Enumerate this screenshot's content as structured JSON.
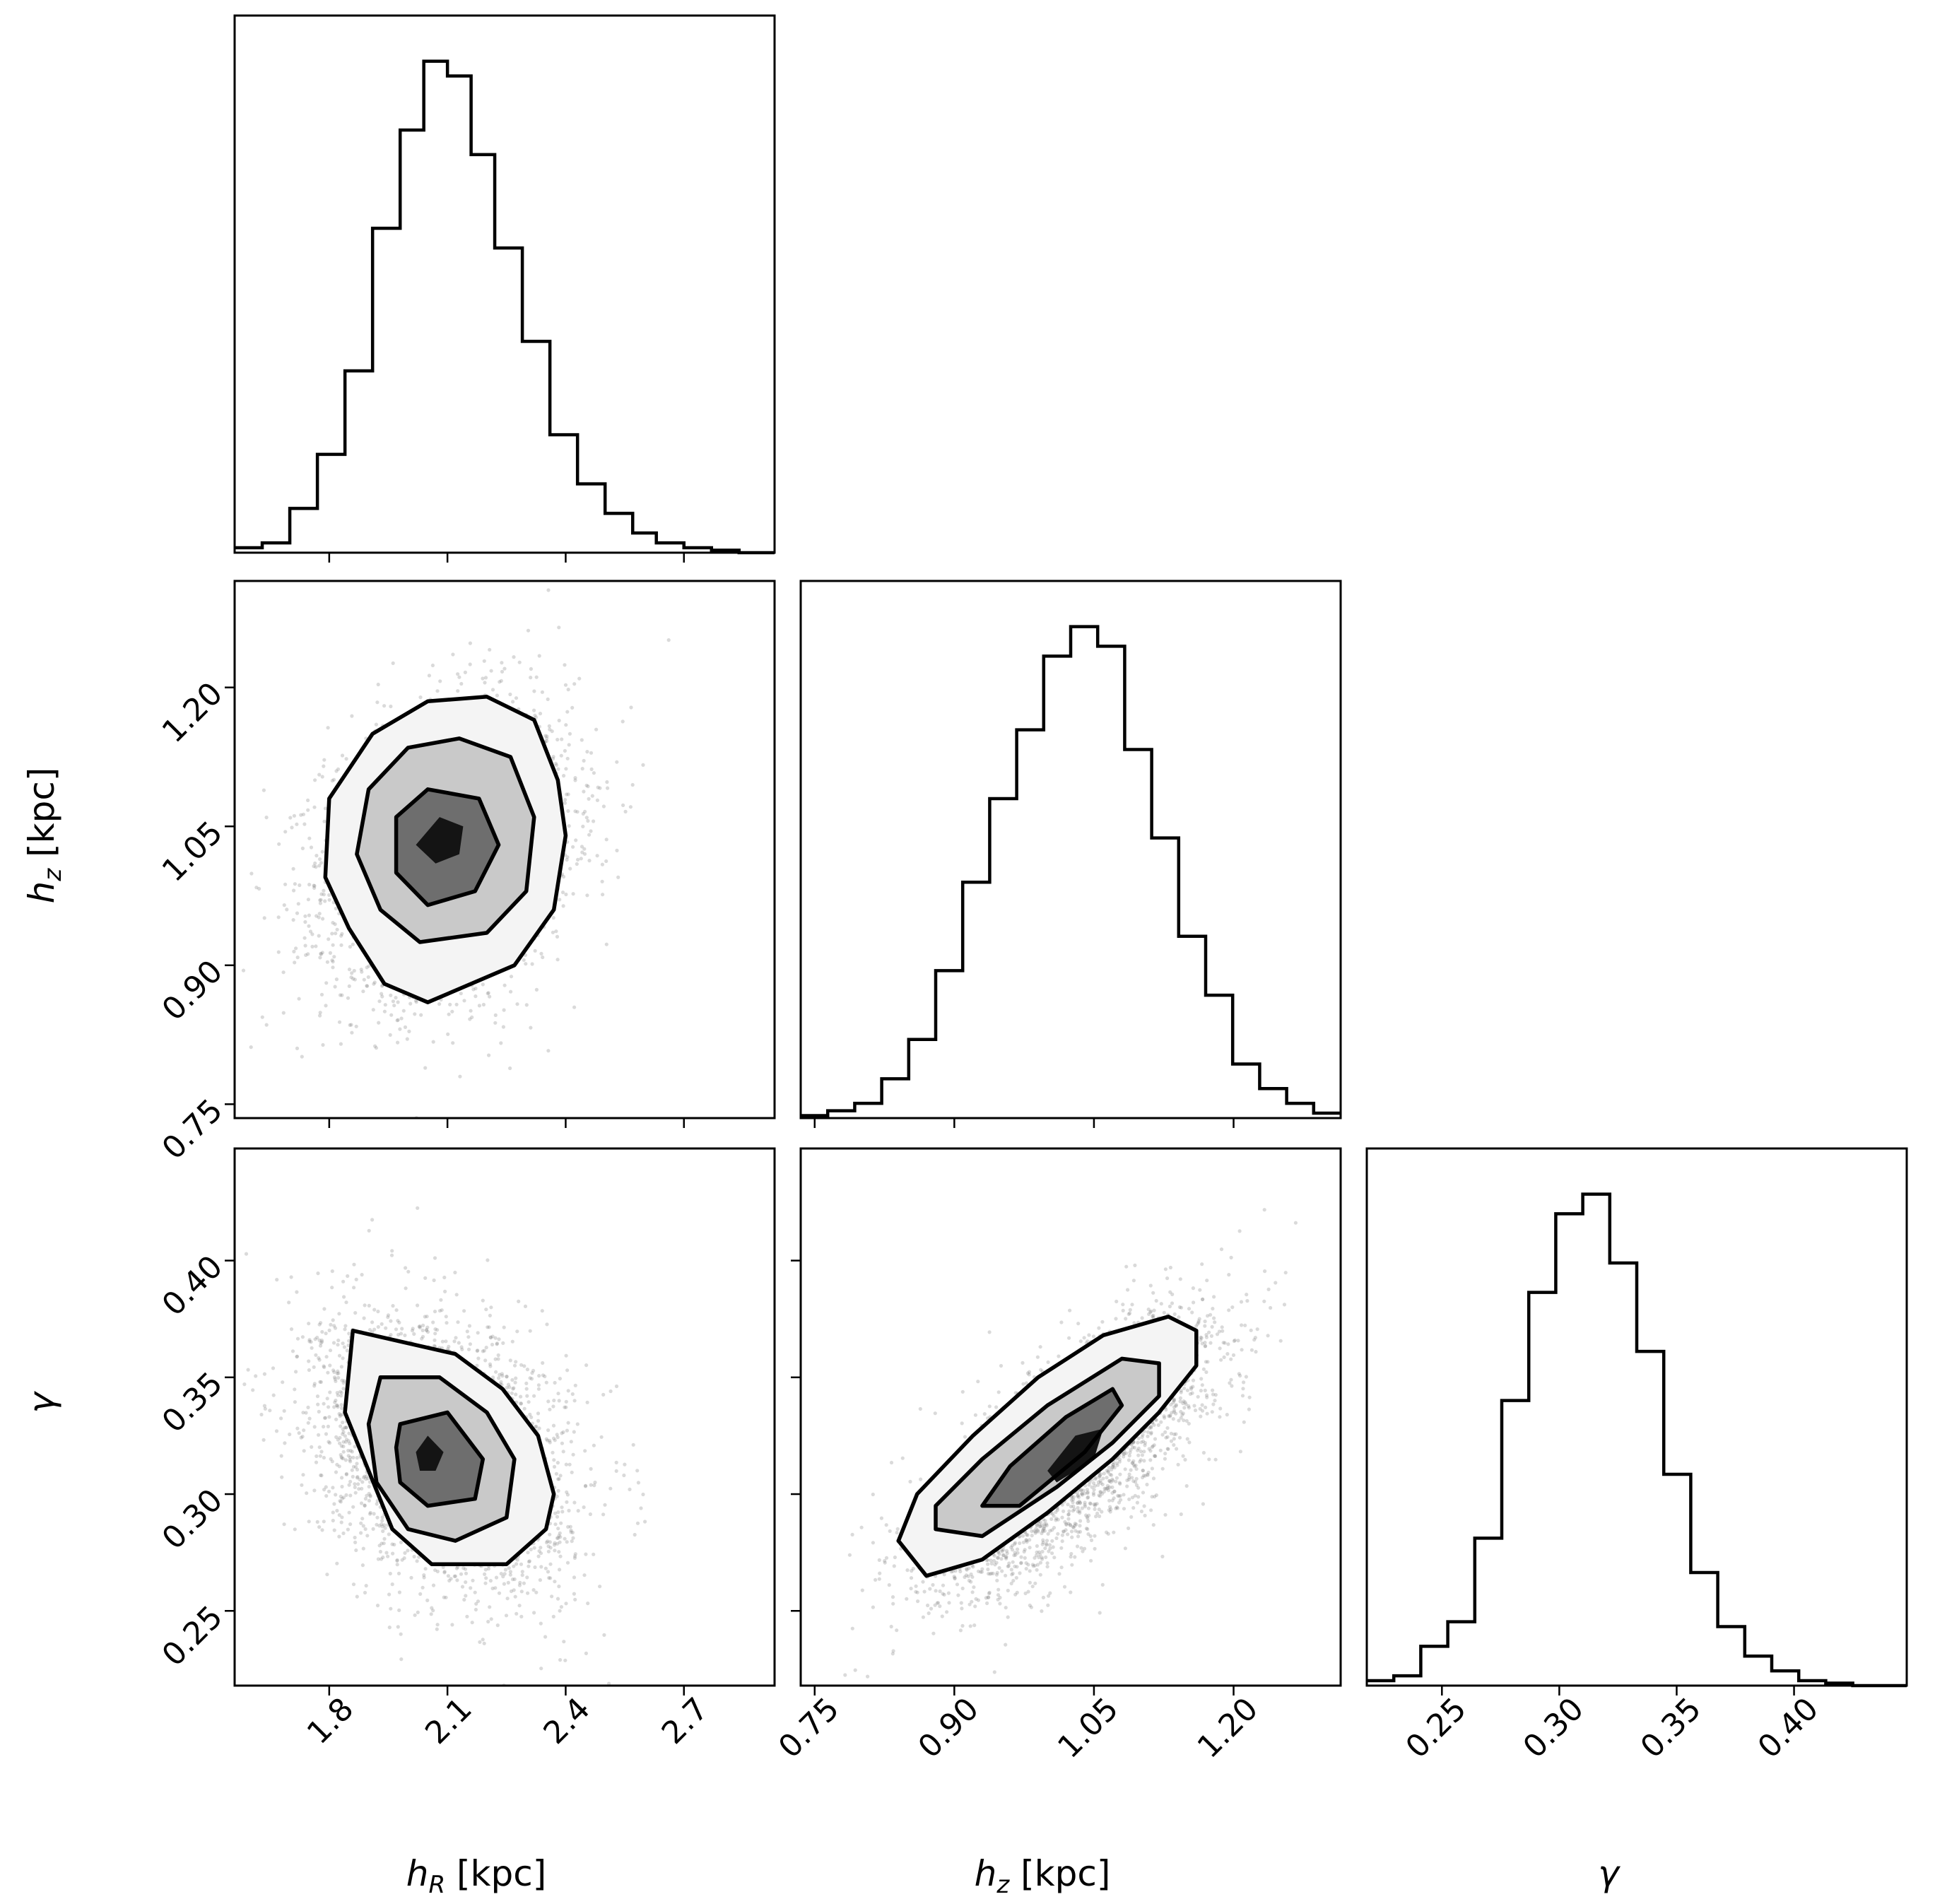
{
  "chart_data": {
    "type": "corner",
    "title": "",
    "parameters": [
      {
        "key": "hR",
        "label": "h",
        "label_sub": "R",
        "label_unit": " [kpc]",
        "range": [
          1.56,
          2.93
        ],
        "ticks": [
          1.8,
          2.1,
          2.4,
          2.7
        ],
        "tick_labels": [
          "1.8",
          "2.1",
          "2.4",
          "2.7"
        ]
      },
      {
        "key": "hz",
        "label": "h",
        "label_sub": "z",
        "label_unit": " [kpc]",
        "range": [
          0.735,
          1.315
        ],
        "ticks": [
          0.75,
          0.9,
          1.05,
          1.2
        ],
        "tick_labels": [
          "0.75",
          "0.90",
          "1.05",
          "1.20"
        ]
      },
      {
        "key": "gamma",
        "label": "γ",
        "label_sub": "",
        "label_unit": "",
        "range": [
          0.218,
          0.448
        ],
        "ticks": [
          0.25,
          0.3,
          0.35,
          0.4
        ],
        "tick_labels": [
          "0.25",
          "0.30",
          "0.35",
          "0.40"
        ]
      }
    ],
    "histograms": [
      {
        "param": "hR",
        "bin_edges": [
          1.56,
          1.63,
          1.7,
          1.77,
          1.84,
          1.91,
          1.98,
          2.04,
          2.1,
          2.16,
          2.22,
          2.29,
          2.36,
          2.43,
          2.5,
          2.57,
          2.63,
          2.7,
          2.77,
          2.84,
          2.93
        ],
        "counts": [
          0.01,
          0.02,
          0.09,
          0.2,
          0.37,
          0.66,
          0.86,
          1.0,
          0.97,
          0.81,
          0.62,
          0.43,
          0.24,
          0.14,
          0.08,
          0.04,
          0.02,
          0.01,
          0.005,
          0
        ]
      },
      {
        "param": "hz",
        "bin_edges": [
          0.735,
          0.764,
          0.793,
          0.822,
          0.851,
          0.88,
          0.909,
          0.938,
          0.967,
          0.996,
          1.025,
          1.054,
          1.083,
          1.112,
          1.141,
          1.17,
          1.199,
          1.228,
          1.257,
          1.286,
          1.315
        ],
        "counts": [
          0.005,
          0.015,
          0.03,
          0.08,
          0.16,
          0.3,
          0.48,
          0.65,
          0.79,
          0.94,
          1.0,
          0.96,
          0.75,
          0.57,
          0.37,
          0.25,
          0.11,
          0.06,
          0.03,
          0.01
        ]
      },
      {
        "param": "gamma",
        "bin_edges": [
          0.218,
          0.2295,
          0.241,
          0.2525,
          0.264,
          0.2755,
          0.287,
          0.2985,
          0.31,
          0.3215,
          0.333,
          0.3445,
          0.356,
          0.3675,
          0.379,
          0.3905,
          0.402,
          0.4135,
          0.425,
          0.4365,
          0.448
        ],
        "counts": [
          0.01,
          0.02,
          0.08,
          0.13,
          0.3,
          0.58,
          0.8,
          0.96,
          1.0,
          0.86,
          0.68,
          0.43,
          0.23,
          0.12,
          0.06,
          0.03,
          0.01,
          0.005,
          0,
          0
        ]
      }
    ],
    "pairs": [
      {
        "x": "hR",
        "y": "hz",
        "mean": [
          2.1,
          1.025
        ],
        "std": [
          0.155,
          0.075
        ],
        "correlation": 0.25,
        "points": 3500,
        "contours": [
          [
            [
              1.85,
              0.94
            ],
            [
              1.79,
              0.995
            ],
            [
              1.8,
              1.08
            ],
            [
              1.91,
              1.15
            ],
            [
              2.05,
              1.185
            ],
            [
              2.2,
              1.19
            ],
            [
              2.32,
              1.165
            ],
            [
              2.38,
              1.1
            ],
            [
              2.4,
              1.04
            ],
            [
              2.37,
              0.96
            ],
            [
              2.27,
              0.9
            ],
            [
              2.05,
              0.86
            ],
            [
              1.94,
              0.88
            ],
            [
              1.85,
              0.94
            ]
          ],
          [
            [
              1.93,
              0.96
            ],
            [
              1.87,
              1.02
            ],
            [
              1.9,
              1.09
            ],
            [
              2.0,
              1.135
            ],
            [
              2.13,
              1.145
            ],
            [
              2.26,
              1.125
            ],
            [
              2.32,
              1.06
            ],
            [
              2.3,
              0.98
            ],
            [
              2.2,
              0.935
            ],
            [
              2.03,
              0.925
            ],
            [
              1.93,
              0.96
            ]
          ],
          [
            [
              1.97,
              1.0
            ],
            [
              1.97,
              1.06
            ],
            [
              2.05,
              1.09
            ],
            [
              2.18,
              1.08
            ],
            [
              2.23,
              1.03
            ],
            [
              2.17,
              0.98
            ],
            [
              2.05,
              0.965
            ],
            [
              1.97,
              1.0
            ]
          ],
          [
            [
              2.02,
              1.03
            ],
            [
              2.08,
              1.06
            ],
            [
              2.14,
              1.05
            ],
            [
              2.13,
              1.02
            ],
            [
              2.07,
              1.01
            ],
            [
              2.02,
              1.03
            ]
          ]
        ]
      },
      {
        "x": "hR",
        "y": "gamma",
        "mean": [
          2.09,
          0.318
        ],
        "std": [
          0.155,
          0.028
        ],
        "correlation": -0.3,
        "points": 3500,
        "contours": [
          [
            [
              1.86,
              0.37
            ],
            [
              1.99,
              0.365
            ],
            [
              2.12,
              0.36
            ],
            [
              2.24,
              0.345
            ],
            [
              2.33,
              0.325
            ],
            [
              2.37,
              0.3
            ],
            [
              2.35,
              0.285
            ],
            [
              2.25,
              0.27
            ],
            [
              2.06,
              0.27
            ],
            [
              1.96,
              0.285
            ],
            [
              1.9,
              0.31
            ],
            [
              1.84,
              0.335
            ],
            [
              1.86,
              0.37
            ]
          ],
          [
            [
              1.93,
              0.35
            ],
            [
              2.08,
              0.35
            ],
            [
              2.2,
              0.335
            ],
            [
              2.27,
              0.315
            ],
            [
              2.25,
              0.29
            ],
            [
              2.12,
              0.28
            ],
            [
              2.0,
              0.285
            ],
            [
              1.92,
              0.305
            ],
            [
              1.9,
              0.33
            ],
            [
              1.93,
              0.35
            ]
          ],
          [
            [
              1.98,
              0.33
            ],
            [
              2.1,
              0.335
            ],
            [
              2.19,
              0.315
            ],
            [
              2.17,
              0.298
            ],
            [
              2.05,
              0.295
            ],
            [
              1.98,
              0.305
            ],
            [
              1.97,
              0.32
            ],
            [
              1.98,
              0.33
            ]
          ],
          [
            [
              2.02,
              0.318
            ],
            [
              2.05,
              0.325
            ],
            [
              2.09,
              0.318
            ],
            [
              2.07,
              0.31
            ],
            [
              2.03,
              0.31
            ],
            [
              2.02,
              0.318
            ]
          ]
        ]
      },
      {
        "x": "hz",
        "y": "gamma",
        "mean": [
          1.025,
          0.318
        ],
        "std": [
          0.075,
          0.028
        ],
        "correlation": 0.72,
        "points": 3500,
        "contours": [
          [
            [
              0.84,
              0.28
            ],
            [
              0.87,
              0.265
            ],
            [
              0.93,
              0.272
            ],
            [
              1.0,
              0.292
            ],
            [
              1.07,
              0.315
            ],
            [
              1.12,
              0.335
            ],
            [
              1.16,
              0.355
            ],
            [
              1.16,
              0.37
            ],
            [
              1.13,
              0.376
            ],
            [
              1.06,
              0.368
            ],
            [
              0.99,
              0.35
            ],
            [
              0.92,
              0.325
            ],
            [
              0.86,
              0.3
            ],
            [
              0.84,
              0.28
            ]
          ],
          [
            [
              0.88,
              0.285
            ],
            [
              0.93,
              0.282
            ],
            [
              1.01,
              0.303
            ],
            [
              1.07,
              0.322
            ],
            [
              1.12,
              0.342
            ],
            [
              1.12,
              0.356
            ],
            [
              1.08,
              0.358
            ],
            [
              1.0,
              0.338
            ],
            [
              0.93,
              0.315
            ],
            [
              0.88,
              0.295
            ],
            [
              0.88,
              0.285
            ]
          ],
          [
            [
              0.93,
              0.295
            ],
            [
              0.97,
              0.295
            ],
            [
              1.04,
              0.318
            ],
            [
              1.08,
              0.338
            ],
            [
              1.07,
              0.345
            ],
            [
              1.02,
              0.333
            ],
            [
              0.96,
              0.312
            ],
            [
              0.93,
              0.295
            ]
          ],
          [
            [
              1.0,
              0.31
            ],
            [
              1.03,
              0.325
            ],
            [
              1.06,
              0.328
            ],
            [
              1.05,
              0.315
            ],
            [
              1.01,
              0.305
            ],
            [
              1.0,
              0.31
            ]
          ]
        ]
      }
    ]
  }
}
